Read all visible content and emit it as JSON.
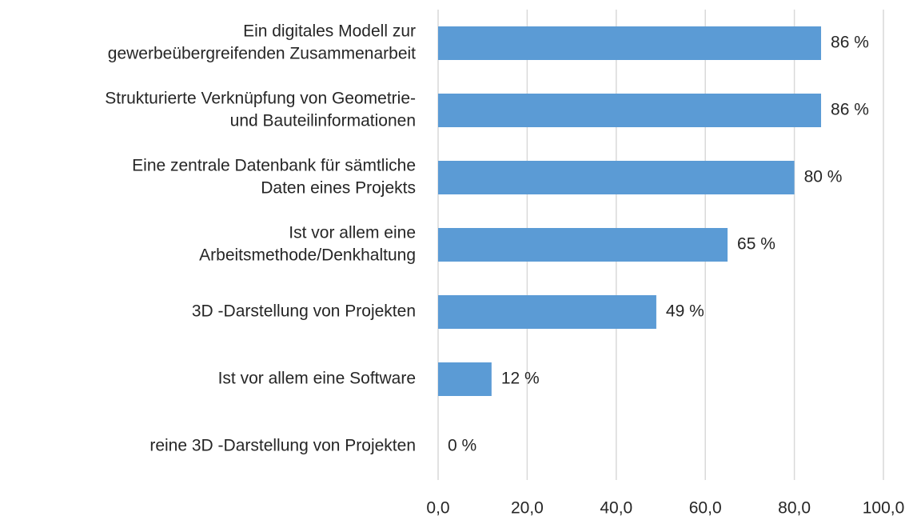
{
  "chart_data": {
    "type": "bar",
    "orientation": "horizontal",
    "categories": [
      [
        "Ein digitales Modell zur",
        "gewerbeübergreifenden Zusammenarbeit"
      ],
      [
        "Strukturierte Verknüpfung von Geometrie-",
        "und Bauteilinformationen"
      ],
      [
        "Eine zentrale Datenbank für sämtliche",
        "Daten eines Projekts"
      ],
      [
        "Ist vor allem eine",
        "Arbeitsmethode/Denkhaltung"
      ],
      [
        "3D -Darstellung von Projekten"
      ],
      [
        "Ist vor allem eine Software"
      ],
      [
        "reine 3D -Darstellung von Projekten"
      ]
    ],
    "values": [
      86,
      86,
      80,
      65,
      49,
      12,
      0
    ],
    "value_labels": [
      "86 %",
      "86 %",
      "80 %",
      "65 %",
      "49 %",
      "12 %",
      "0 %"
    ],
    "color": "#5b9bd5",
    "xlim": [
      0,
      100
    ],
    "xticks": [
      {
        "value": 0,
        "label": "0,0"
      },
      {
        "value": 20,
        "label": "20,0"
      },
      {
        "value": 40,
        "label": "40,0"
      },
      {
        "value": 60,
        "label": "60,0"
      },
      {
        "value": 80,
        "label": "80,0"
      },
      {
        "value": 100,
        "label": "100,0"
      }
    ],
    "grid": true
  }
}
